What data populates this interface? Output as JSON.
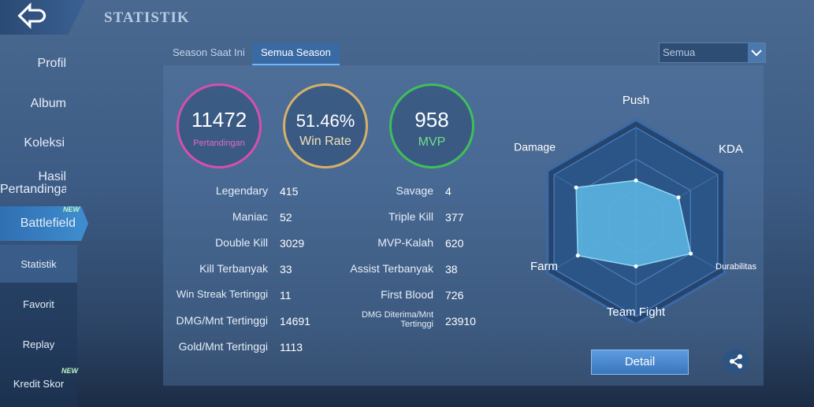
{
  "header": {
    "title": "STATISTIK"
  },
  "nav": {
    "items": [
      {
        "label": "Profil"
      },
      {
        "label": "Album"
      },
      {
        "label": "Koleksi"
      },
      {
        "label": "Hasil Pertandingan"
      },
      {
        "label": "Battlefield",
        "badge": "NEW"
      },
      {
        "label": "Statistik"
      },
      {
        "label": "Favorit"
      },
      {
        "label": "Replay"
      },
      {
        "label": "Kredit Skor",
        "badge": "NEW"
      }
    ]
  },
  "tabs": [
    "Season Saat Ini",
    "Semua Season"
  ],
  "dropdown": "Semua",
  "summary": [
    {
      "value": 11472,
      "label": "Pertandingan"
    },
    {
      "value": "51.46%",
      "label": "Win Rate"
    },
    {
      "value": 958,
      "label": "MVP"
    }
  ],
  "stats": {
    "left": [
      [
        "Legendary",
        415
      ],
      [
        "Maniac",
        52
      ],
      [
        "Double Kill",
        3029
      ],
      [
        "Kill Terbanyak",
        33
      ],
      [
        "Win Streak Tertinggi",
        11
      ],
      [
        "DMG/Mnt Tertinggi",
        14691
      ],
      [
        "Gold/Mnt Tertinggi",
        1113
      ]
    ],
    "right": [
      [
        "Savage",
        4
      ],
      [
        "Triple Kill",
        377
      ],
      [
        "MVP-Kalah",
        620
      ],
      [
        "Assist Terbanyak",
        38
      ],
      [
        "First Blood",
        726
      ],
      [
        "DMG Diterima/Mnt Tertinggi",
        23910
      ]
    ]
  },
  "radar": {
    "axes": [
      "Push",
      "KDA",
      "Durabilitas",
      "Team Fight",
      "Farm",
      "Damage"
    ],
    "values": [
      44,
      52,
      67,
      47,
      71,
      73
    ],
    "rlim": [
      0,
      100
    ]
  },
  "detail_button": "Detail"
}
